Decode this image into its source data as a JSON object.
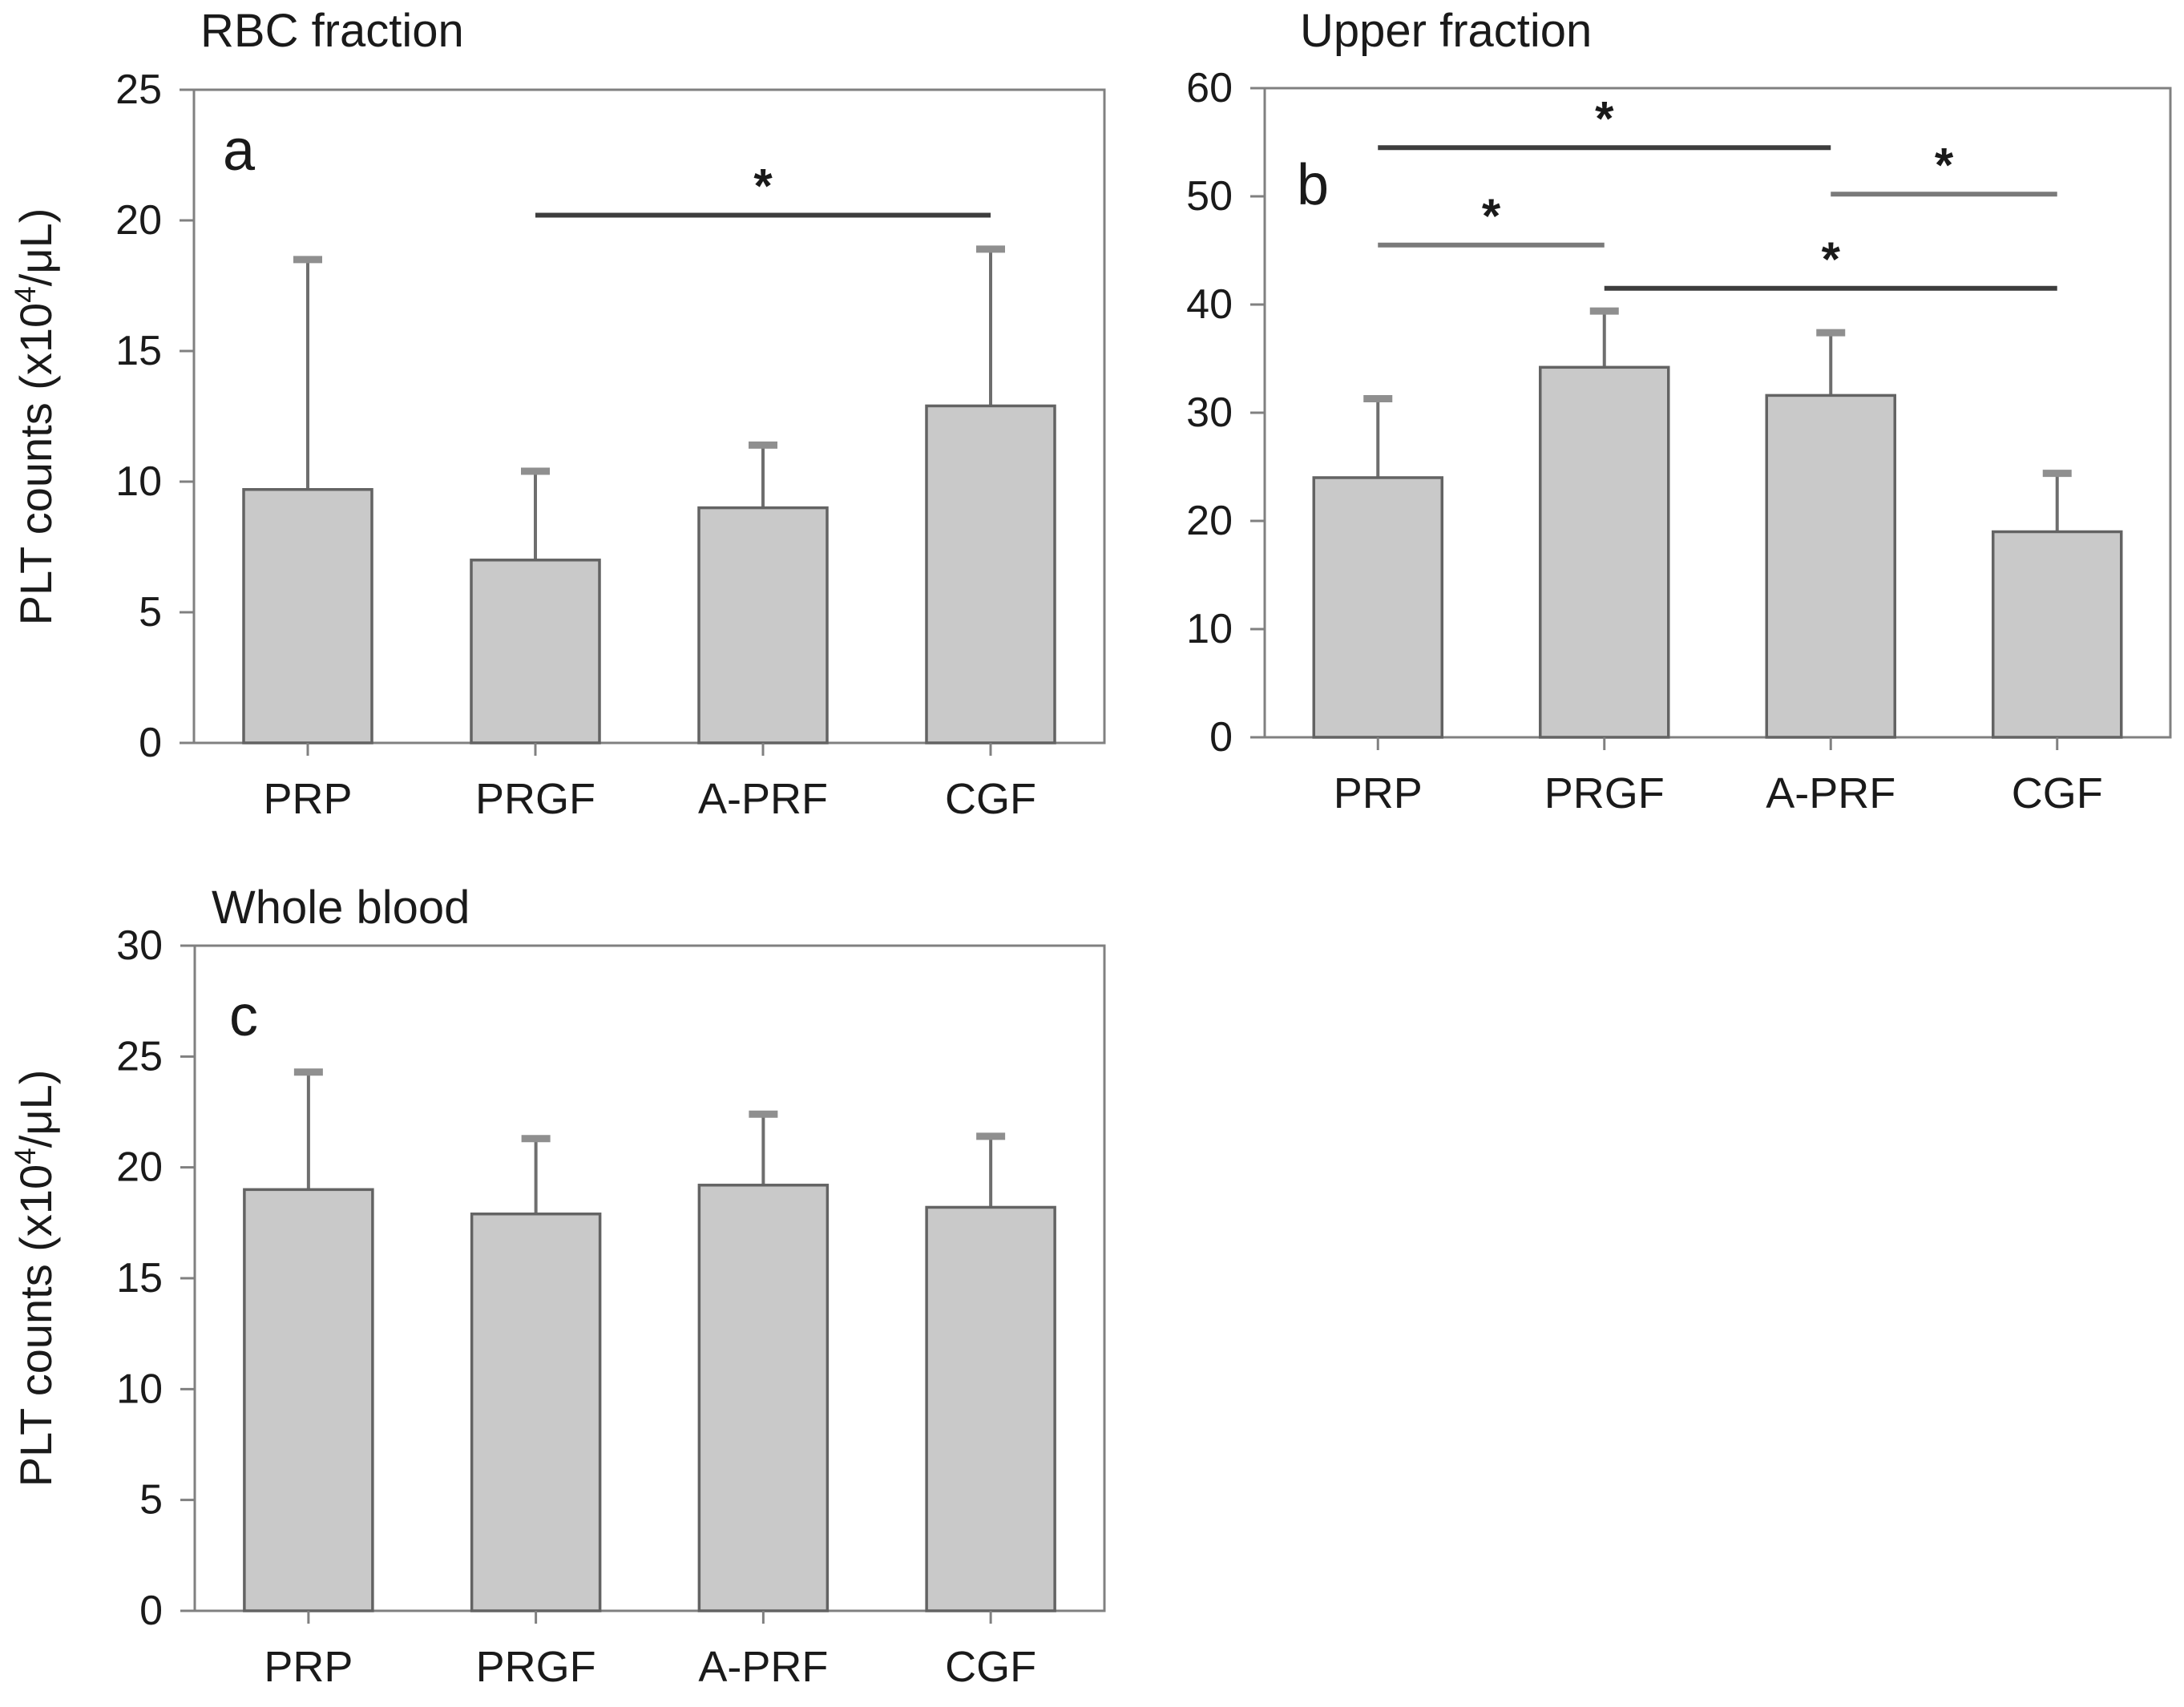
{
  "figure": {
    "background": "#ffffff",
    "palette": {
      "bar_fill": "#c9c9c9",
      "bar_stroke": "#636363",
      "axis_color": "#808080",
      "error_line": "#6e6e6e",
      "error_cap": "#8f8f8f",
      "text_color": "#1a1a1a",
      "sig_dark": "#3d3d3d",
      "sig_gray": "#7a7a7a"
    }
  },
  "chart_data": [
    {
      "type": "bar",
      "panel_letter": "a",
      "title": "RBC fraction",
      "ylabel": "PLT counts (x10⁴/μL)",
      "ylabel_parts": {
        "pre": "PLT counts (x10",
        "sup": "4",
        "post": "/μL)"
      },
      "categories": [
        "PRP",
        "PRGF",
        "A-PRF",
        "CGF"
      ],
      "values": [
        9.7,
        7.0,
        9.0,
        12.9
      ],
      "errors_up": [
        8.8,
        3.4,
        2.4,
        6.0
      ],
      "ylim": [
        0,
        25
      ],
      "yticks": [
        0,
        5,
        10,
        15,
        20,
        25
      ],
      "grid": false,
      "significance": [
        {
          "from": 1,
          "to": 3,
          "y": 20.2,
          "label": "*",
          "shade": "sig_dark"
        }
      ]
    },
    {
      "type": "bar",
      "panel_letter": "b",
      "title": "Upper fraction",
      "ylabel": "",
      "ylabel_parts": null,
      "categories": [
        "PRP",
        "PRGF",
        "A-PRF",
        "CGF"
      ],
      "values": [
        24.0,
        34.2,
        31.6,
        19.0
      ],
      "errors_up": [
        7.3,
        5.2,
        5.8,
        5.4
      ],
      "ylim": [
        0,
        60
      ],
      "yticks": [
        0,
        10,
        20,
        30,
        40,
        50,
        60
      ],
      "grid": false,
      "significance": [
        {
          "from": 0,
          "to": 2,
          "y": 54.5,
          "label": "*",
          "shade": "sig_dark"
        },
        {
          "from": 2,
          "to": 3,
          "y": 50.2,
          "label": "*",
          "shade": "sig_gray"
        },
        {
          "from": 0,
          "to": 1,
          "y": 45.5,
          "label": "*",
          "shade": "sig_gray"
        },
        {
          "from": 1,
          "to": 3,
          "y": 41.5,
          "label": "*",
          "shade": "sig_dark"
        }
      ]
    },
    {
      "type": "bar",
      "panel_letter": "c",
      "title": "Whole blood",
      "ylabel": "PLT counts (x10⁴/μL)",
      "ylabel_parts": {
        "pre": "PLT counts (x10",
        "sup": "4",
        "post": "/μL)"
      },
      "categories": [
        "PRP",
        "PRGF",
        "A-PRF",
        "CGF"
      ],
      "values": [
        19.0,
        17.9,
        19.2,
        18.2
      ],
      "errors_up": [
        5.3,
        3.4,
        3.2,
        3.2
      ],
      "ylim": [
        0,
        30
      ],
      "yticks": [
        0,
        5,
        10,
        15,
        20,
        25,
        30
      ],
      "grid": false,
      "significance": []
    }
  ]
}
